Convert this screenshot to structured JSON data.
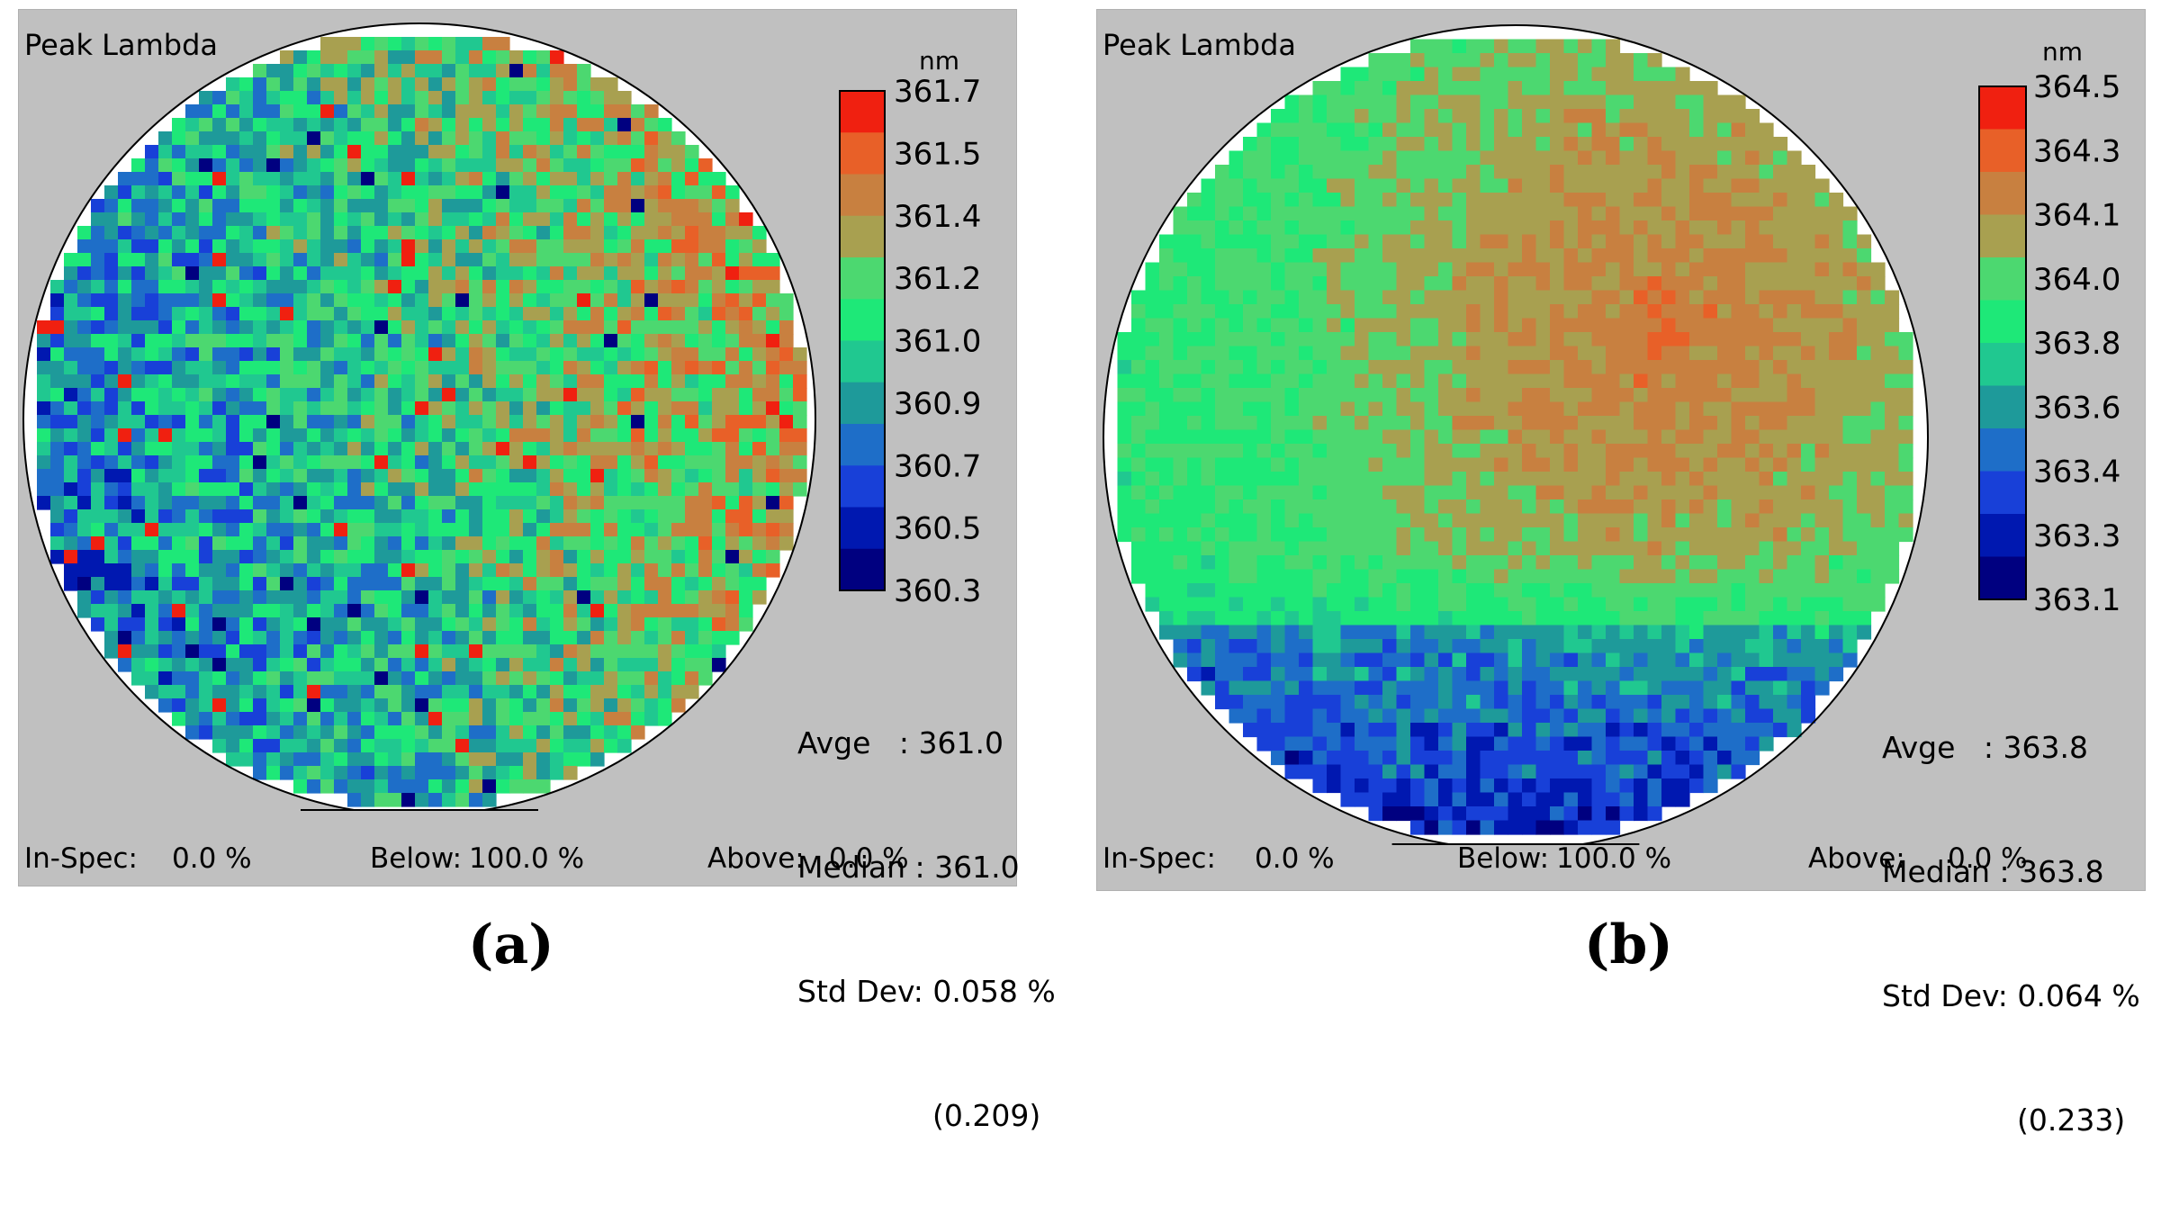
{
  "chart_data": [
    {
      "type": "heatmap",
      "panel": "a",
      "title": "Peak Lambda",
      "caption": "(a)",
      "unit": "nm",
      "colorbar_ticks": [
        "361.7",
        "361.5",
        "361.4",
        "361.2",
        "361.0",
        "360.9",
        "360.7",
        "360.5",
        "360.3"
      ],
      "value_range": [
        360.3,
        361.7
      ],
      "pattern": "noisy-left-low-right-high",
      "stats": {
        "avg_label": "Avge   :",
        "avg": "361.0",
        "median_label": "Median :",
        "median": "361.0",
        "std_label": "Std Dev:",
        "std": "0.058 %",
        "std_abs": "(0.209)"
      },
      "footer": {
        "in_spec_label": "In-Spec:",
        "in_spec": "0.0 %",
        "below_label": "Below:",
        "below": "100.0 %",
        "above_label": "Above:",
        "above": "0.0 %"
      }
    },
    {
      "type": "heatmap",
      "panel": "b",
      "title": "Peak Lambda",
      "caption": "(b)",
      "unit": "nm",
      "colorbar_ticks": [
        "364.5",
        "364.3",
        "364.1",
        "364.0",
        "363.8",
        "363.6",
        "363.4",
        "363.3",
        "363.1"
      ],
      "value_range": [
        363.1,
        364.5
      ],
      "pattern": "smooth-top-right-high-bottom-low",
      "stats": {
        "avg_label": "Avge   :",
        "avg": "363.8",
        "median_label": "Median :",
        "median": "363.8",
        "std_label": "Std Dev:",
        "std": "0.064 %",
        "std_abs": "(0.233)"
      },
      "footer": {
        "in_spec_label": "In-Spec:",
        "in_spec": "0.0 %",
        "below_label": "Below:",
        "below": "100.0 %",
        "above_label": "Above:",
        "above": "0.0 %"
      }
    }
  ],
  "colors": {
    "panel_bg": "#c0c0c0",
    "palette": [
      "#000080",
      "#0018b0",
      "#1840d8",
      "#1e6ec8",
      "#1e9a9a",
      "#20c890",
      "#1ee878",
      "#4cd870",
      "#a8a050",
      "#c88040",
      "#e86028",
      "#f02010"
    ]
  }
}
